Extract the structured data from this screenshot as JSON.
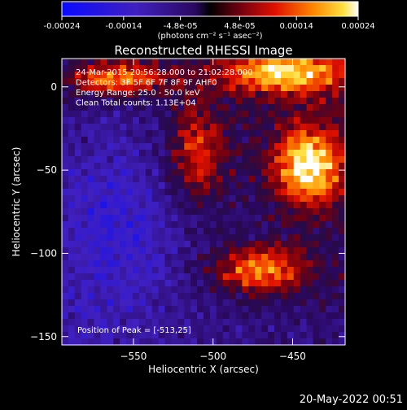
{
  "colorbar": {
    "ticks": [
      "-0.00024",
      "-0.00014",
      "-4.8e-05",
      "4.8e-05",
      "0.00014",
      "0.00024"
    ],
    "tick_values": [
      -0.00024,
      -0.00014,
      -4.8e-05,
      4.8e-05,
      0.00014,
      0.00024
    ],
    "range": [
      -0.00024,
      0.00024
    ],
    "unit_label": "(photons cm⁻² s⁻¹ asec⁻²)"
  },
  "chart_data": {
    "type": "heatmap",
    "title": "Reconstructed RHESSI Image",
    "xlabel": "Heliocentric X (arcsec)",
    "ylabel": "Heliocentric Y (arcsec)",
    "xlim": [
      -595,
      -417
    ],
    "ylim": [
      -155,
      17
    ],
    "x_ticks": [
      -550,
      -500,
      -450
    ],
    "x_tick_labels": [
      "−550",
      "−500",
      "−450"
    ],
    "y_ticks": [
      0,
      -50,
      -100,
      -150
    ],
    "y_tick_labels": [
      "0",
      "−50",
      "−100",
      "−150"
    ],
    "peak": [
      -513,
      25
    ],
    "annotations": [
      "24-Mar-2015 20:56:28.000 to 21:02:28.000",
      "Detectors: 3F 5F 6F 7F 8F 9F AHF0",
      "Energy Range: 25.0 - 50.0 keV",
      "Clean    Total counts: 1.13E+04"
    ],
    "peak_label": "Position of Peak = [-513,25]"
  },
  "timestamp": "20-May-2022 00:51"
}
